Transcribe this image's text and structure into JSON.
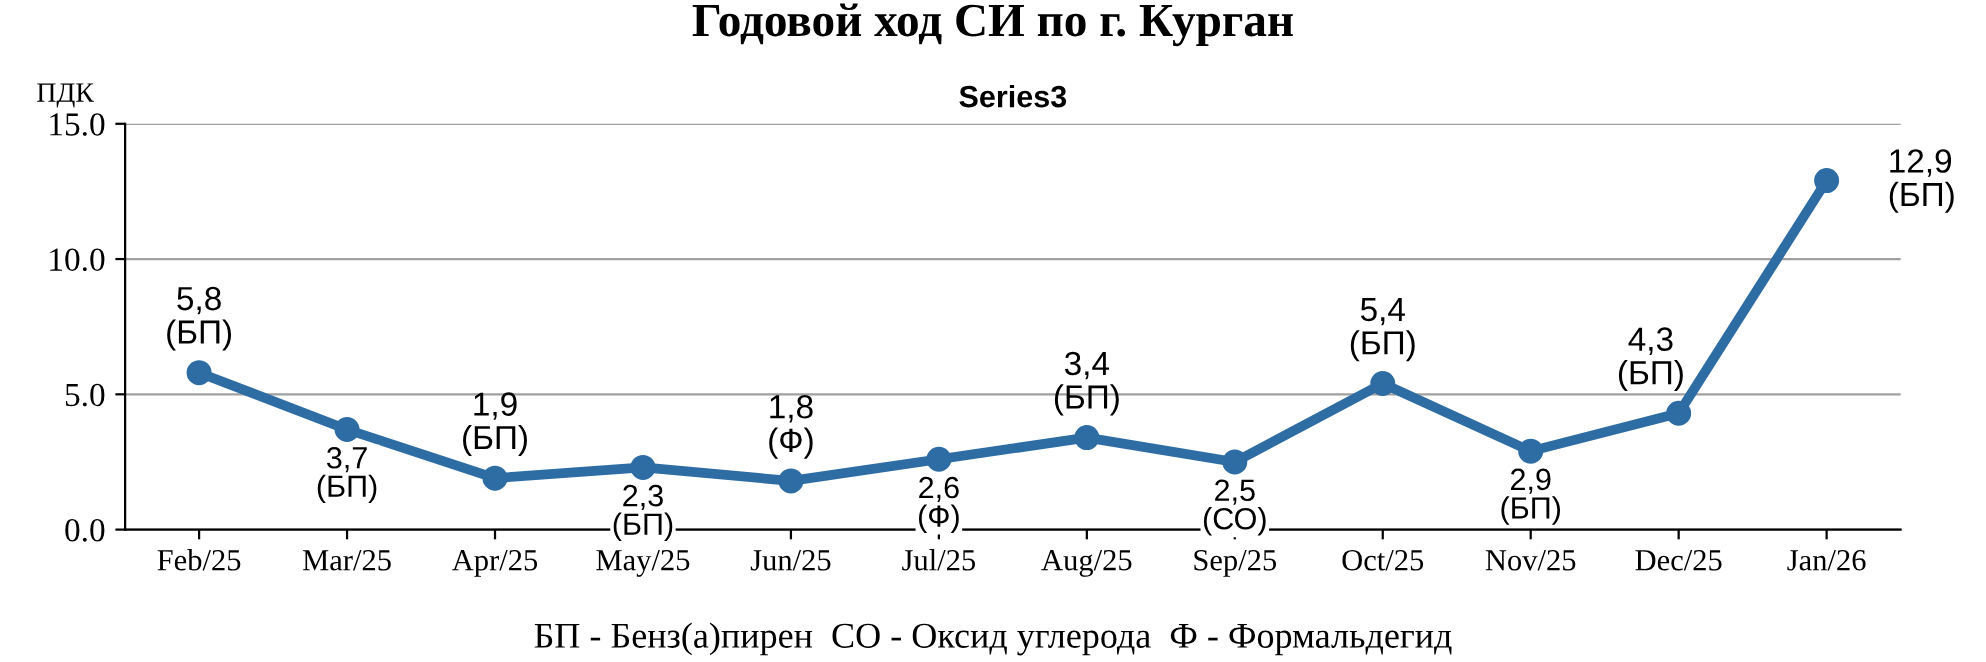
{
  "chart_data": {
    "type": "line",
    "title": "Годовой ход СИ по г. Курган",
    "subtitle": "Series3",
    "ylabel": "ПДК",
    "categories": [
      "Feb/25",
      "Mar/25",
      "Apr/25",
      "May/25",
      "Jun/25",
      "Jul/25",
      "Aug/25",
      "Sep/25",
      "Oct/25",
      "Nov/25",
      "Dec/25",
      "Jan/26"
    ],
    "series": [
      {
        "color": "#2e6ca4",
        "values": [
          5.8,
          3.7,
          1.9,
          2.3,
          1.8,
          2.6,
          3.4,
          2.5,
          5.4,
          2.9,
          4.3,
          12.9
        ],
        "value_labels": [
          "5,8\n(БП)",
          "3,7\n(БП)",
          "1,9\n(БП)",
          "2,3\n(БП)",
          "1,8\n(Ф)",
          "2,6\n(Ф)",
          "3,4\n(БП)",
          "2,5\n(СО)",
          "5,4\n(БП)",
          "2,9\n(БП)",
          "4,3\n(БП)",
          "12,9\n(БП)"
        ]
      }
    ],
    "ylim": [
      0,
      15
    ],
    "yticks": [
      {
        "value": 0,
        "label": "0.0"
      },
      {
        "value": 5,
        "label": "5.0"
      },
      {
        "value": 10,
        "label": "10.0"
      },
      {
        "value": 15,
        "label": "15.0"
      }
    ],
    "grid": "y",
    "marker": "circle",
    "line_style": "solid",
    "annotations": [
      "БП - Бенз(а)пирен  СО - Оксид углерода  Ф - Формальдегид"
    ]
  }
}
